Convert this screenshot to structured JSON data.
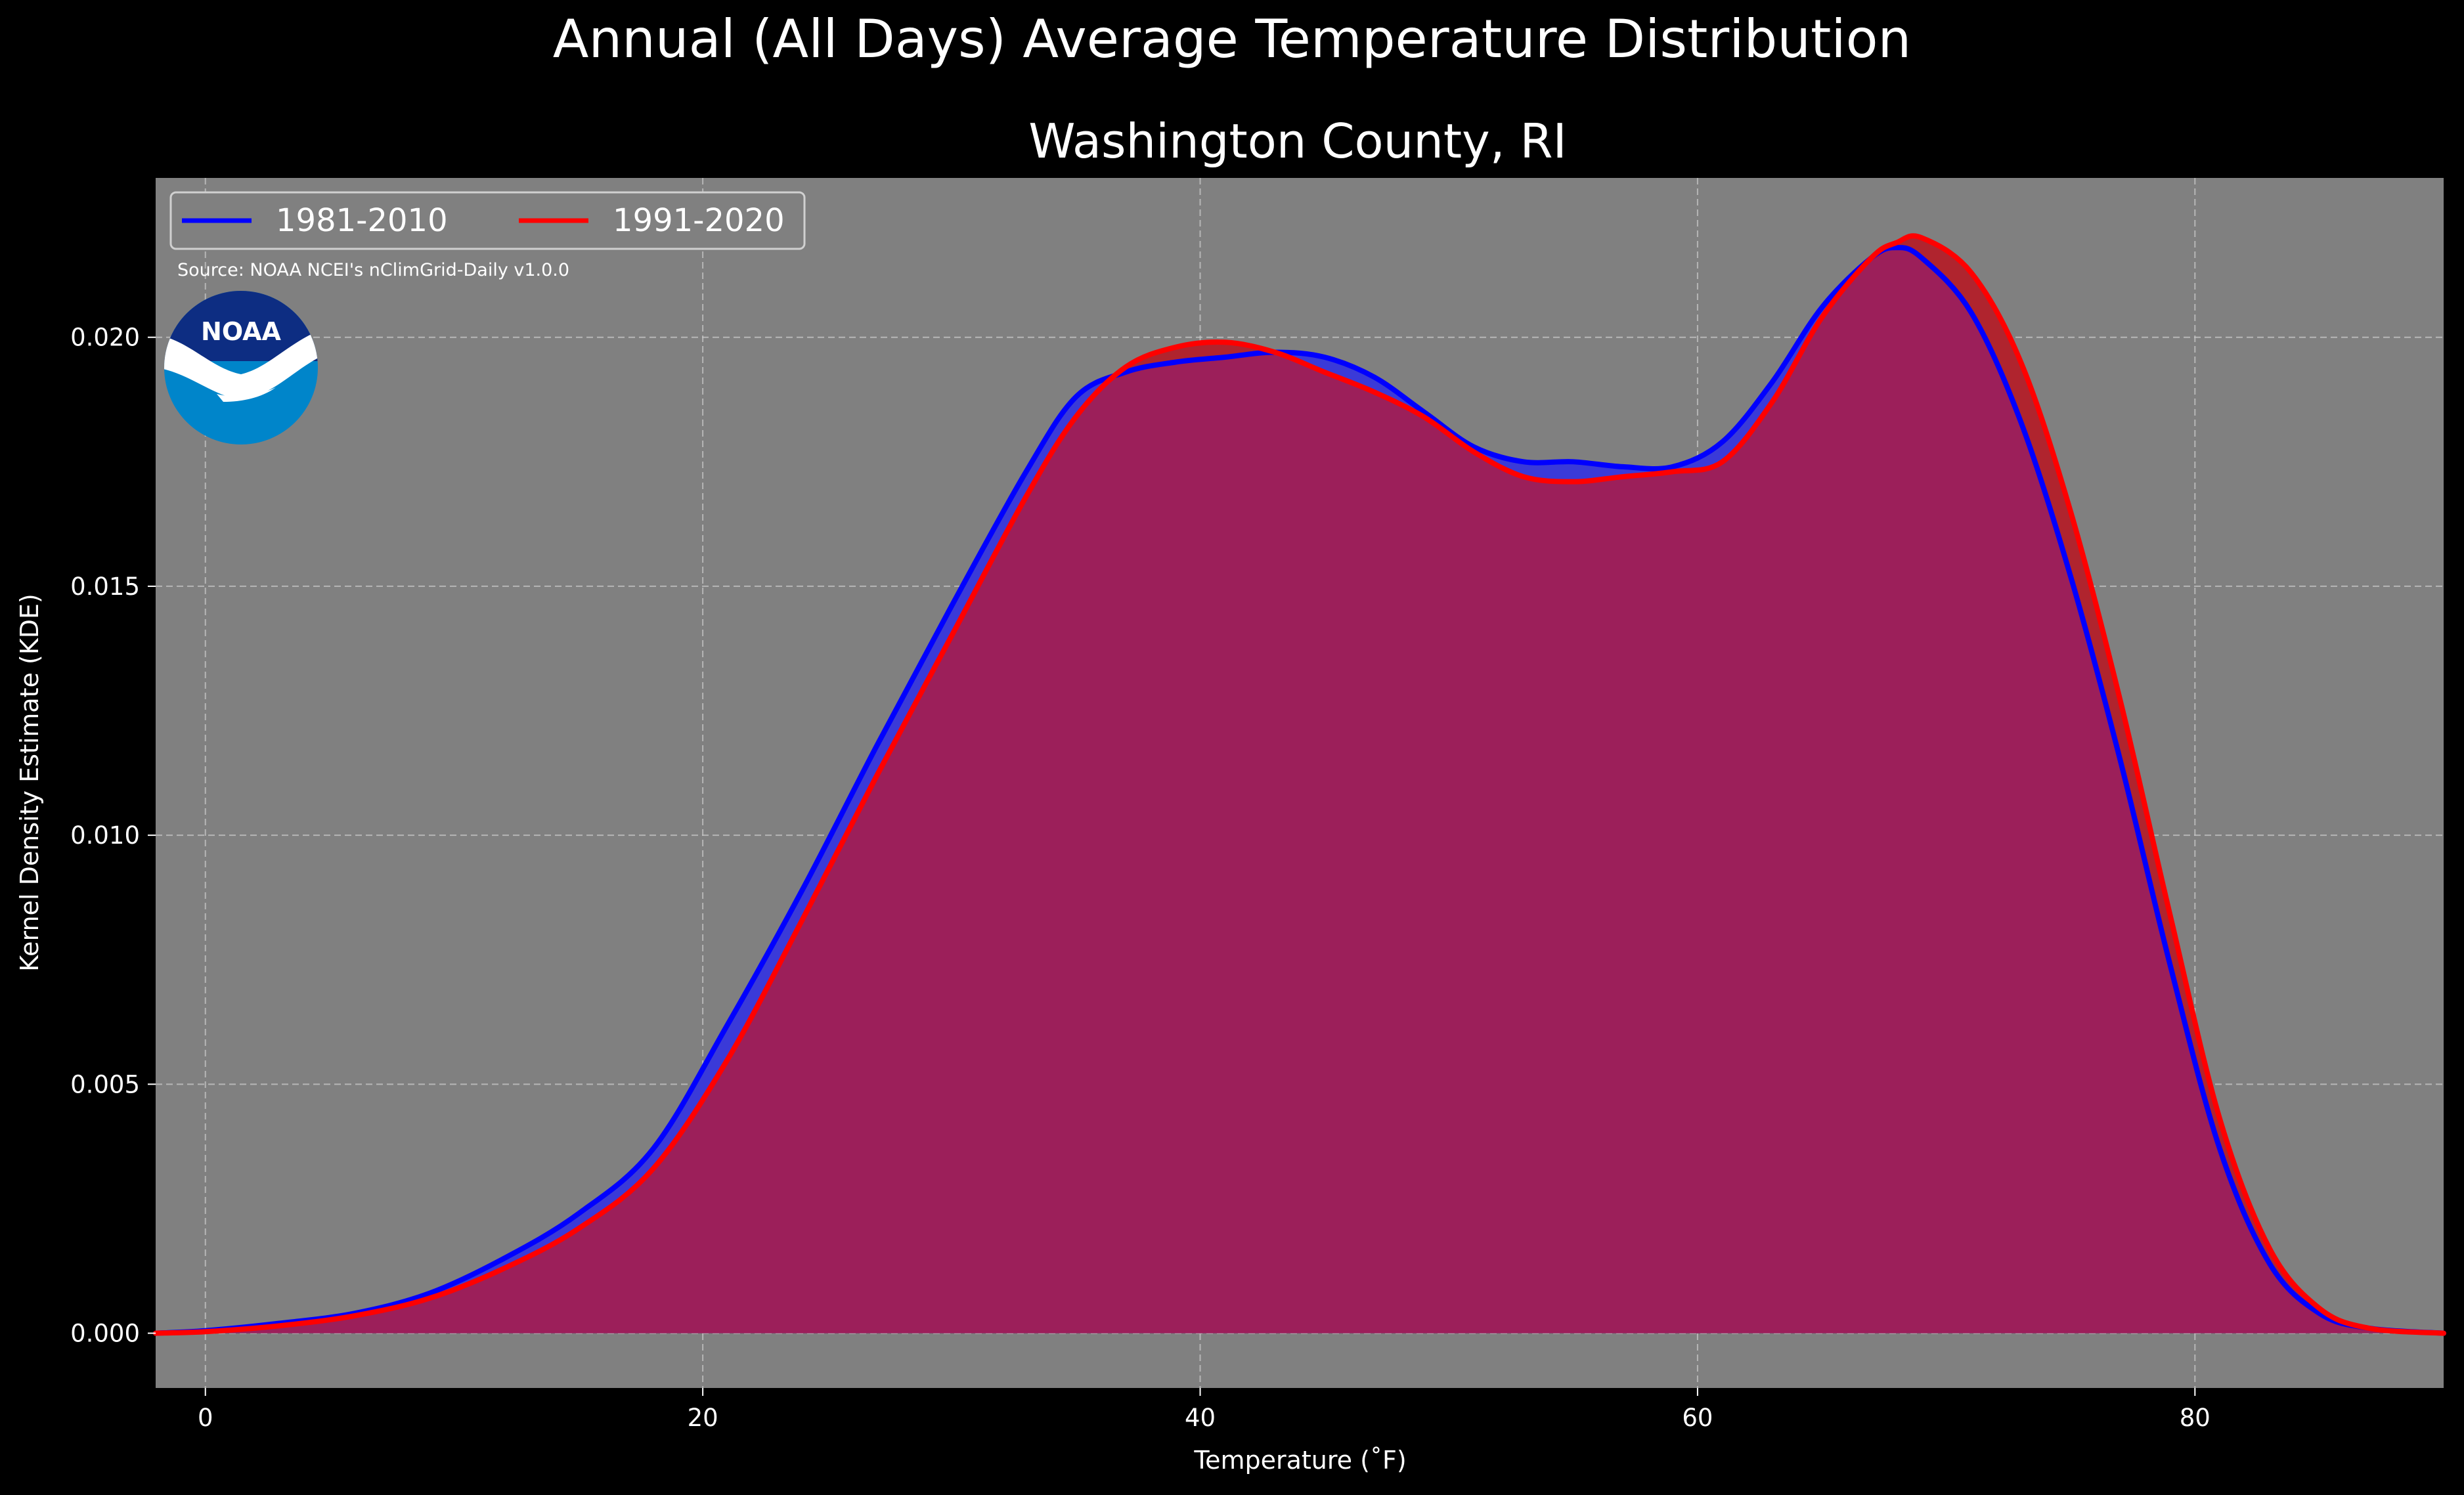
{
  "chart_data": {
    "type": "area",
    "title": "Annual (All Days) Average Temperature Distribution",
    "subtitle": "Washington County, RI",
    "xlabel": "Temperature (˚F)",
    "ylabel": "Kernel Density Estimate (KDE)",
    "xlim": [
      -2,
      90
    ],
    "ylim": [
      -0.0011,
      0.0232
    ],
    "x_ticks": [
      "0",
      "20",
      "40",
      "60",
      "80"
    ],
    "y_ticks": [
      "0.000",
      "0.005",
      "0.010",
      "0.015",
      "0.020"
    ],
    "grid": true,
    "legend_position": "top-left",
    "source": "Source: NOAA NCEI's nClimGrid-Daily v1.0.0",
    "logo_text": "NOAA",
    "background_color": "#808080",
    "overlap_fill_color": "#9c1f5a",
    "series": [
      {
        "name": "1981-2010",
        "color": "#0000ff",
        "fill_color": "#3a3ad8",
        "x": [
          -2,
          0,
          3,
          6,
          9,
          12,
          15,
          18,
          21,
          24,
          27,
          30,
          33,
          35,
          37,
          39,
          41,
          43,
          45,
          47,
          49,
          51,
          53,
          55,
          57,
          59,
          61,
          63,
          65,
          67,
          68,
          69,
          71,
          73,
          75,
          77,
          79,
          81,
          83,
          85,
          87,
          90
        ],
        "y": [
          0.0,
          5e-05,
          0.0002,
          0.0004,
          0.0008,
          0.0015,
          0.0024,
          0.0037,
          0.0062,
          0.0089,
          0.0118,
          0.0146,
          0.0173,
          0.0188,
          0.0193,
          0.0195,
          0.0196,
          0.0197,
          0.0196,
          0.0192,
          0.0185,
          0.0178,
          0.0175,
          0.0175,
          0.0174,
          0.0174,
          0.0179,
          0.0191,
          0.0206,
          0.0216,
          0.0218,
          0.0216,
          0.0205,
          0.0183,
          0.0152,
          0.0115,
          0.0074,
          0.0037,
          0.0014,
          0.0004,
          0.0001,
          0.0
        ]
      },
      {
        "name": "1991-2020",
        "color": "#ff0000",
        "fill_color": "#b0242e",
        "x": [
          -2,
          0,
          3,
          6,
          9,
          12,
          15,
          18,
          21,
          24,
          27,
          30,
          33,
          35,
          37,
          39,
          41,
          43,
          45,
          47,
          49,
          51,
          53,
          55,
          57,
          59,
          61,
          63,
          65,
          67,
          68,
          69,
          71,
          73,
          75,
          77,
          79,
          81,
          83,
          85,
          87,
          90
        ],
        "y": [
          0.0,
          3e-05,
          0.00015,
          0.00035,
          0.0007,
          0.0013,
          0.0021,
          0.0033,
          0.0055,
          0.0083,
          0.0112,
          0.014,
          0.0168,
          0.0184,
          0.0194,
          0.0198,
          0.0199,
          0.0197,
          0.0193,
          0.0189,
          0.0184,
          0.0177,
          0.0172,
          0.0171,
          0.0172,
          0.0173,
          0.0175,
          0.0187,
          0.0204,
          0.0216,
          0.0219,
          0.022,
          0.0213,
          0.0195,
          0.0165,
          0.0127,
          0.0084,
          0.0043,
          0.0017,
          0.0005,
          0.0001,
          0.0
        ]
      }
    ]
  }
}
